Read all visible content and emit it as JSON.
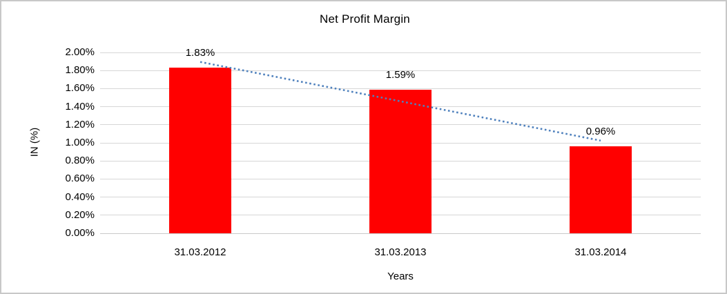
{
  "chart_data": {
    "type": "bar",
    "title": "Net Profit Margin",
    "xlabel": "Years",
    "ylabel": "IN (%)",
    "categories": [
      "31.03.2012",
      "31.03.2013",
      "31.03.2014"
    ],
    "values": [
      1.83,
      1.59,
      0.96
    ],
    "data_labels": [
      "1.83%",
      "1.59%",
      "0.96%"
    ],
    "y_tick_labels": [
      "0.00%",
      "0.20%",
      "0.40%",
      "0.60%",
      "0.80%",
      "1.00%",
      "1.20%",
      "1.40%",
      "1.60%",
      "1.80%",
      "2.00%"
    ],
    "ylim": [
      0,
      2.0
    ],
    "y_tick_step": 0.2,
    "grid": true,
    "legend": "none",
    "bar_color": "#ff0000",
    "trendline": {
      "type": "linear",
      "style": "dotted",
      "color": "#4f81bd",
      "endpoint_values": [
        1.895,
        1.025
      ]
    }
  }
}
